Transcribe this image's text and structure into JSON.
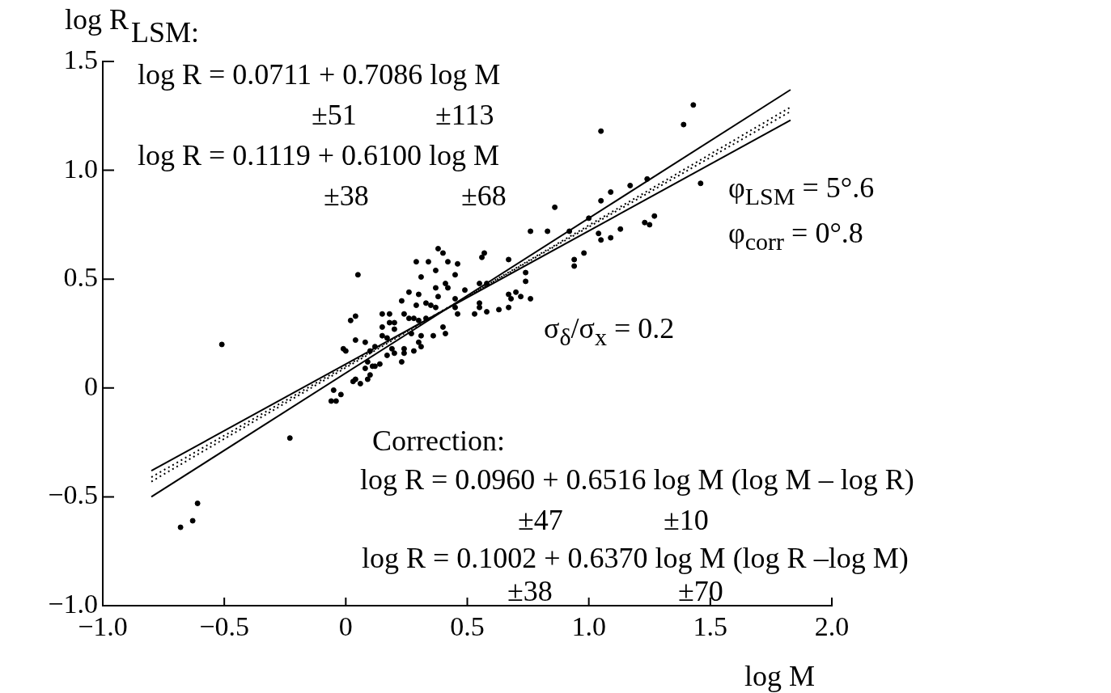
{
  "chart_data": {
    "type": "scatter",
    "xlabel": "log M",
    "ylabel": "log R",
    "xlim": [
      -1.0,
      2.0
    ],
    "ylim": [
      -1.0,
      1.5
    ],
    "xticks": [
      {
        "value": -1.0,
        "label": "−1.0"
      },
      {
        "value": -0.5,
        "label": "−0.5"
      },
      {
        "value": 0,
        "label": "0"
      },
      {
        "value": 0.5,
        "label": "0.5"
      },
      {
        "value": 1.0,
        "label": "1.0"
      },
      {
        "value": 1.5,
        "label": "1.5"
      },
      {
        "value": 2.0,
        "label": "2.0"
      }
    ],
    "yticks": [
      {
        "value": -1.0,
        "label": "−1.0"
      },
      {
        "value": -0.5,
        "label": "−0.5"
      },
      {
        "value": 0,
        "label": "0"
      },
      {
        "value": 0.5,
        "label": "0.5"
      },
      {
        "value": 1.0,
        "label": "1.0"
      },
      {
        "value": 1.5,
        "label": "1.5"
      }
    ],
    "grid": false,
    "legend": false,
    "marker": "circle",
    "series": [
      {
        "type": "scatter",
        "color": "#000000",
        "x": [
          -0.51,
          -0.01,
          -0.06,
          -0.04,
          -0.02,
          -0.23,
          -0.61,
          -0.63,
          -0.68,
          0.76,
          0.83,
          0.38,
          0.4,
          0.57,
          0.56,
          0.67,
          0.29,
          0.34,
          0.42,
          0.46,
          0.37,
          0.05,
          0.31,
          0.45,
          0.41,
          0.55,
          0.58,
          0.37,
          0.42,
          0.49,
          0.26,
          0.3,
          0.38,
          0.67,
          0.7,
          0.68,
          0.72,
          0.76,
          0.23,
          0.45,
          0.33,
          0.29,
          0.35,
          0.55,
          0.67,
          0.37,
          0.55,
          0.58,
          0.63,
          0.45,
          0.53,
          0.15,
          0.18,
          0.04,
          0.02,
          0.24,
          0.26,
          0.28,
          0.18,
          0.2,
          0.3,
          0.46,
          0.15,
          0.2,
          0.33,
          0.4,
          0.41,
          0.36,
          0.31,
          0.27,
          0.15,
          0.17,
          0.04,
          0.08,
          0.3,
          0.0,
          0.12,
          0.19,
          0.24,
          0.28,
          0.31,
          0.1,
          0.17,
          0.2,
          0.24,
          0.09,
          0.12,
          0.14,
          0.23,
          0.08,
          0.11,
          0.1,
          0.04,
          0.09,
          0.03,
          0.06,
          -0.05,
          0.74,
          0.74,
          1.43,
          1.39,
          1.05,
          1.24,
          1.17,
          1.09,
          1.05,
          1.46,
          0.86,
          1.0,
          1.27,
          1.23,
          1.25,
          0.92,
          1.04,
          1.13,
          1.05,
          1.09,
          0.98,
          0.94,
          0.94
        ],
        "values": [
          0.2,
          0.18,
          -0.06,
          -0.06,
          -0.03,
          -0.23,
          -0.53,
          -0.61,
          -0.64,
          0.72,
          0.72,
          0.64,
          0.62,
          0.62,
          0.6,
          0.59,
          0.58,
          0.58,
          0.58,
          0.57,
          0.54,
          0.52,
          0.51,
          0.52,
          0.48,
          0.48,
          0.48,
          0.46,
          0.46,
          0.45,
          0.44,
          0.43,
          0.42,
          0.43,
          0.44,
          0.41,
          0.42,
          0.41,
          0.4,
          0.41,
          0.39,
          0.38,
          0.38,
          0.39,
          0.37,
          0.37,
          0.37,
          0.35,
          0.36,
          0.37,
          0.34,
          0.34,
          0.34,
          0.33,
          0.31,
          0.34,
          0.32,
          0.32,
          0.3,
          0.3,
          0.31,
          0.34,
          0.28,
          0.27,
          0.32,
          0.28,
          0.25,
          0.24,
          0.24,
          0.25,
          0.24,
          0.23,
          0.22,
          0.21,
          0.21,
          0.17,
          0.19,
          0.18,
          0.18,
          0.17,
          0.19,
          0.17,
          0.15,
          0.16,
          0.16,
          0.12,
          0.1,
          0.11,
          0.12,
          0.09,
          0.1,
          0.06,
          0.04,
          0.04,
          0.03,
          0.02,
          -0.01,
          0.49,
          0.53,
          1.3,
          1.21,
          1.18,
          0.96,
          0.93,
          0.9,
          0.86,
          0.94,
          0.83,
          0.78,
          0.79,
          0.76,
          0.75,
          0.72,
          0.71,
          0.73,
          0.68,
          0.69,
          0.62,
          0.59,
          0.56
        ]
      },
      {
        "type": "line",
        "color": "#000000",
        "line_style": "solid",
        "marker": "none",
        "x": [
          -0.8,
          1.83
        ],
        "values": [
          -0.5,
          1.37
        ]
      },
      {
        "type": "line",
        "color": "#000000",
        "line_style": "solid",
        "marker": "none",
        "x": [
          -0.8,
          1.83
        ],
        "values": [
          -0.38,
          1.23
        ]
      },
      {
        "type": "line",
        "color": "#000000",
        "line_style": "dotted",
        "marker": "none",
        "x": [
          -0.8,
          1.83
        ],
        "values": [
          -0.43,
          1.29
        ]
      },
      {
        "type": "line",
        "color": "#000000",
        "line_style": "dotted",
        "marker": "none",
        "x": [
          -0.8,
          1.83
        ],
        "values": [
          -0.41,
          1.27
        ]
      }
    ],
    "annotations": [
      "LSM:",
      "log R = 0.0711 + 0.7086 log M",
      "±51",
      "±113",
      "log R = 0.1119 + 0.6100 log M",
      "±38",
      "±68",
      "φ$_{LSM}$ = 5°.6",
      "φ$_{corr}$ = 0°.8",
      "σ$_{δ}$/σ$_{x}$ = 0.2",
      "Correction:",
      "log R = 0.0960 + 0.6516 log M  (log M – log R)",
      "±47",
      "±10",
      "log R = 0.1002 + 0.6370 log M  (log R –log M)",
      "±38",
      "±70"
    ]
  }
}
